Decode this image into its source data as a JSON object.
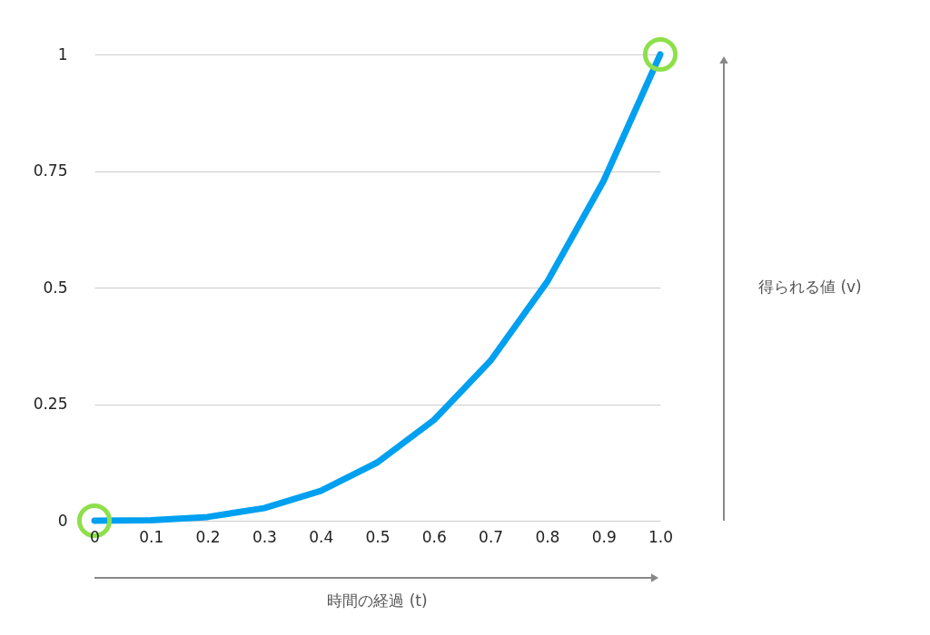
{
  "chart_data": {
    "type": "line",
    "x": [
      0,
      0.1,
      0.2,
      0.3,
      0.4,
      0.5,
      0.6,
      0.7,
      0.8,
      0.9,
      1
    ],
    "series": [
      {
        "color": "#00a0f0",
        "values": [
          0,
          0.001,
          0.008,
          0.027,
          0.064,
          0.125,
          0.216,
          0.343,
          0.512,
          0.729,
          1
        ],
        "line_style": "solid"
      },
      {
        "type": "scatter",
        "color": "#8ee04a",
        "x": [
          0,
          1
        ],
        "values": [
          0,
          1
        ],
        "marker": "circle"
      }
    ],
    "xlim": [
      0,
      1
    ],
    "ylim": [
      0,
      1
    ],
    "xticks": [
      0,
      0.1,
      0.2,
      0.3,
      0.4,
      0.5,
      0.6,
      0.7,
      0.8,
      0.9,
      {
        "value": 1,
        "label": "1.0"
      }
    ],
    "yticks": [
      0,
      0.25,
      0.5,
      0.75,
      1
    ],
    "grid": "y",
    "xlabel": "時間の経過 (t)",
    "annotations": [
      "得られる値 (v)"
    ]
  }
}
